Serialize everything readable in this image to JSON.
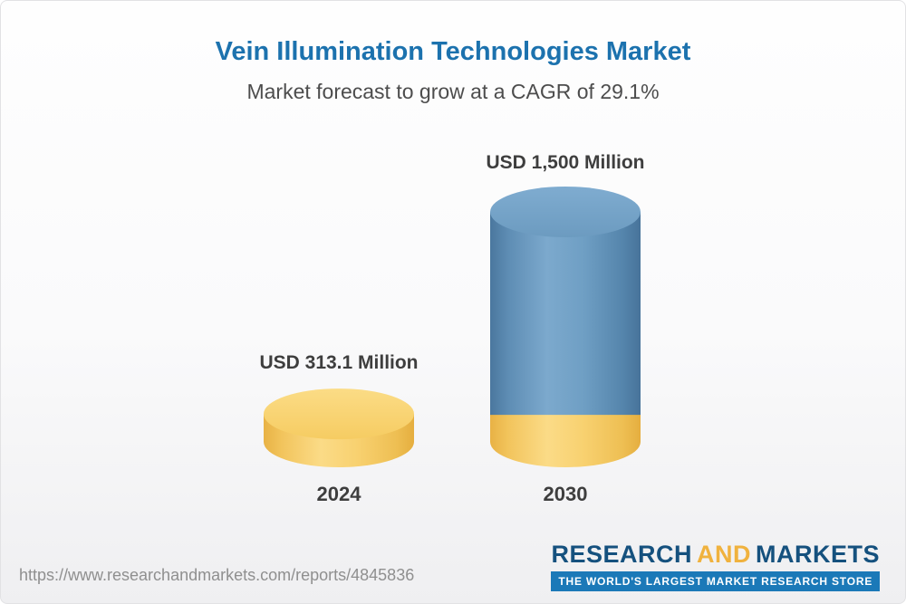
{
  "header": {
    "title": "Vein Illumination Technologies Market",
    "subtitle": "Market forecast to grow at a CAGR of 29.1%"
  },
  "chart_data": {
    "type": "bar",
    "bar_style": "3d-cylinder",
    "title": "Vein Illumination Technologies Market",
    "subtitle": "Market forecast to grow at a CAGR of 29.1%",
    "categories": [
      "2024",
      "2030"
    ],
    "values": [
      313.1,
      1500
    ],
    "value_labels": [
      "USD 313.1 Million",
      "USD 1,500 Million"
    ],
    "unit": "USD Million",
    "ylim": [
      0,
      1500
    ],
    "axis": "none",
    "grid": false,
    "legend_position": "none",
    "colors": {
      "bar_2024": "#F7C95E",
      "bar_2030": "#6C9CC2",
      "bar_2030_base_segment": "#F7C95E",
      "title_text": "#1C72AE",
      "subtitle_text": "#4D4D4D",
      "label_text": "#3E3E3E"
    },
    "annotations": "2030 cylinder shows a yellow base segment equal in height to the 2024 value"
  },
  "footer": {
    "source_url": "https://www.researchandmarkets.com/reports/4845836",
    "logo": {
      "word_research": "RESEARCH",
      "word_and": "AND",
      "word_markets": "MARKETS",
      "tagline": "THE WORLD'S LARGEST MARKET RESEARCH STORE"
    }
  }
}
